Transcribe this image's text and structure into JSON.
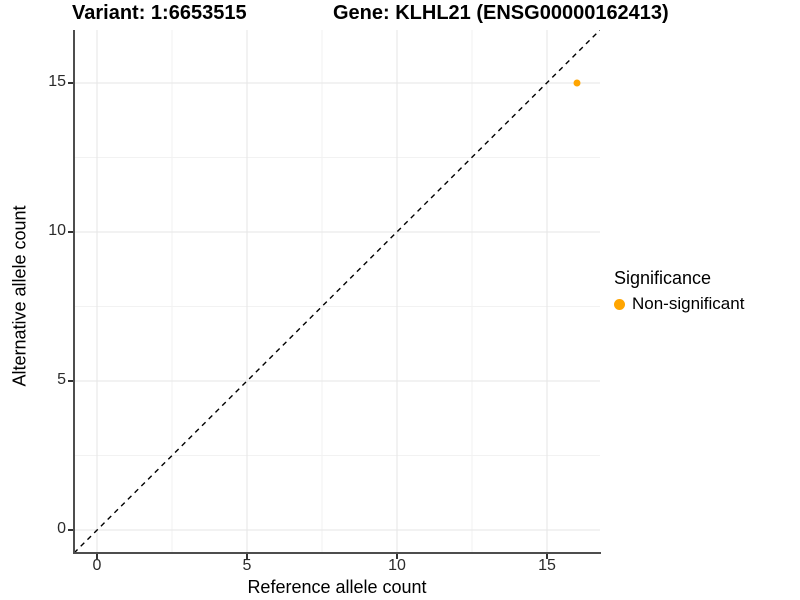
{
  "header": {
    "variant_title": "Variant: 1:6653515",
    "gene_title": "Gene: KLHL21 (ENSG00000162413)"
  },
  "colors": {
    "point_orange": "#FFA500",
    "axis_line": "#4d4d4d",
    "grid_major": "#e6e6e6",
    "grid_minor": "#f2f2f2",
    "reference_line": "#000000"
  },
  "chart_data": {
    "type": "scatter",
    "title": "Variant: 1:6653515    Gene: KLHL21 (ENSG00000162413)",
    "xlabel": "Reference allele count",
    "ylabel": "Alternative allele count",
    "xlim": [
      -0.8,
      16.8
    ],
    "ylim": [
      -0.8,
      16.8
    ],
    "x_ticks": [
      0,
      5,
      10,
      15
    ],
    "y_ticks": [
      0,
      5,
      10,
      15
    ],
    "grid": "major and minor gridlines, white background",
    "series": [
      {
        "name": "Non-significant",
        "color": "#FFA500",
        "points": [
          {
            "x": 16,
            "y": 15
          }
        ]
      }
    ],
    "reference_line": {
      "type": "identity y=x",
      "style": "dashed",
      "color": "#000000"
    },
    "legend": {
      "title": "Significance",
      "position": "right",
      "entries": [
        {
          "label": "Non-significant",
          "color": "#FFA500"
        }
      ]
    }
  }
}
